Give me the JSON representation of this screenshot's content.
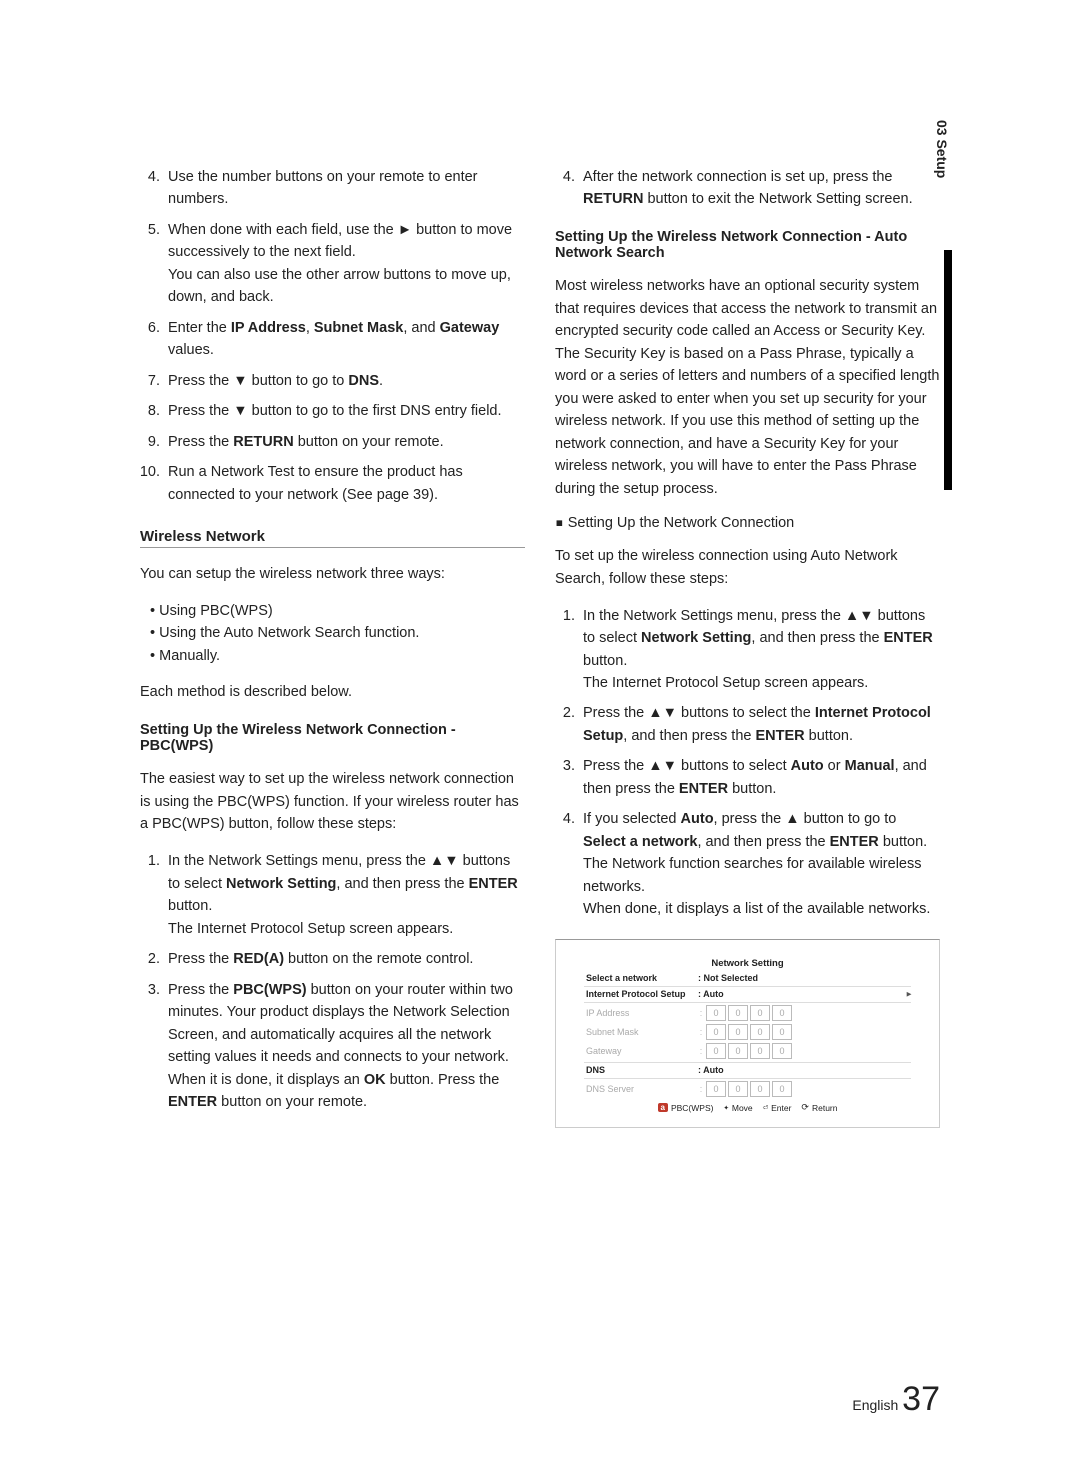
{
  "sideTab": "03   Setup",
  "left": {
    "list1": [
      {
        "start": 4,
        "html": "Use the number buttons on your remote to enter numbers."
      },
      {
        "html": "When done with each field, use the ► button to move successively to the next field.\nYou can also use the other arrow buttons to move up, down, and back."
      },
      {
        "html": "Enter the <b>IP Address</b>, <b>Subnet Mask</b>, and <b>Gateway</b> values."
      },
      {
        "html": "Press the ▼ button to go to <b>DNS</b>."
      },
      {
        "html": "Press the ▼ button to go to the first DNS entry field."
      },
      {
        "html": "Press the <b>RETURN</b> button on your remote."
      },
      {
        "html": "Run a Network Test to ensure the product has connected to your network (See page 39)."
      }
    ],
    "wirelessHeading": "Wireless Network",
    "wirelessIntro": "You can setup the wireless network three ways:",
    "wirelessBullets": [
      "Using PBC(WPS)",
      "Using the Auto Network Search function.",
      "Manually."
    ],
    "wirelessNote": "Each method is described below.",
    "pbcHeading": "Setting Up the Wireless Network Connection - PBC(WPS)",
    "pbcIntro": "The easiest way to set up the wireless network connection is using the PBC(WPS) function. If your wireless router has a PBC(WPS) button, follow these steps:",
    "pbcList": [
      {
        "html": "In the Network Settings menu, press the ▲▼ buttons to select <b>Network Setting</b>, and then press the <b>ENTER</b> button.\nThe Internet Protocol Setup screen appears."
      },
      {
        "html": "Press the <b>RED(A)</b> button on the remote control."
      },
      {
        "html": "Press the <b>PBC(WPS)</b> button on your router within two minutes. Your product displays the Network Selection Screen, and automatically acquires all the network setting values it needs and connects to your network. When it is done, it displays an <b>OK</b> button. Press the <b>ENTER</b> button on your remote."
      }
    ]
  },
  "right": {
    "list1": [
      {
        "start": 4,
        "html": "After the network connection is set up, press the <b>RETURN</b> button to exit the Network Setting screen."
      }
    ],
    "autoHeading": "Setting Up the Wireless Network Connection - Auto Network Search",
    "autoBody": "Most wireless networks have an optional security system that requires devices that access the network to transmit an encrypted security code called an Access or Security Key. The Security Key is based on a Pass Phrase, typically a word or a series of letters and numbers of a specified length you were asked to enter when you set up security for your wireless network. If you use this method of setting up the network connection, and have a Security Key for your wireless network, you will have to enter the Pass Phrase during the setup process.",
    "subHeading": "Setting Up the Network Connection",
    "subBody": "To set up the wireless connection using Auto Network Search, follow these steps:",
    "autoList": [
      {
        "html": "In the Network Settings menu, press the ▲▼ buttons to select <b>Network Setting</b>, and then press the <b>ENTER</b> button.\nThe Internet Protocol Setup screen appears."
      },
      {
        "html": "Press the ▲▼ buttons to select the <b>Internet Protocol Setup</b>, and then press the <b>ENTER</b> button."
      },
      {
        "html": "Press the ▲▼ buttons to select <b>Auto</b> or <b>Manual</b>, and then press the <b>ENTER</b> button."
      },
      {
        "html": "If you selected <b>Auto</b>, press the ▲ button to go to <b>Select a network</b>, and then press the <b>ENTER</b> button.\nThe Network function searches for available wireless networks.\nWhen done, it displays a list of the available networks."
      }
    ]
  },
  "netbox": {
    "title": "Network Setting",
    "rows": [
      {
        "label": "Select a network",
        "value": ": Not Selected",
        "type": "text",
        "strong": true
      },
      {
        "label": "Internet Protocol Setup",
        "value": ": Auto",
        "type": "text",
        "strong": true,
        "chevron": true,
        "hrBefore": true
      },
      {
        "label": "IP Address",
        "type": "octets",
        "dim": true,
        "hrBefore": true
      },
      {
        "label": "Subnet Mask",
        "type": "octets",
        "dim": true
      },
      {
        "label": "Gateway",
        "type": "octets",
        "dim": true
      },
      {
        "label": "DNS",
        "value": ": Auto",
        "type": "text",
        "strong": true,
        "hrBefore": true
      },
      {
        "label": "DNS Server",
        "type": "octets",
        "dim": true,
        "hrBefore": true
      }
    ],
    "octet": "0",
    "footer": {
      "a": "PBC(WPS)",
      "move": "Move",
      "enter": "Enter",
      "ret": "Return"
    }
  },
  "footer": {
    "lang": "English",
    "page": "37"
  }
}
